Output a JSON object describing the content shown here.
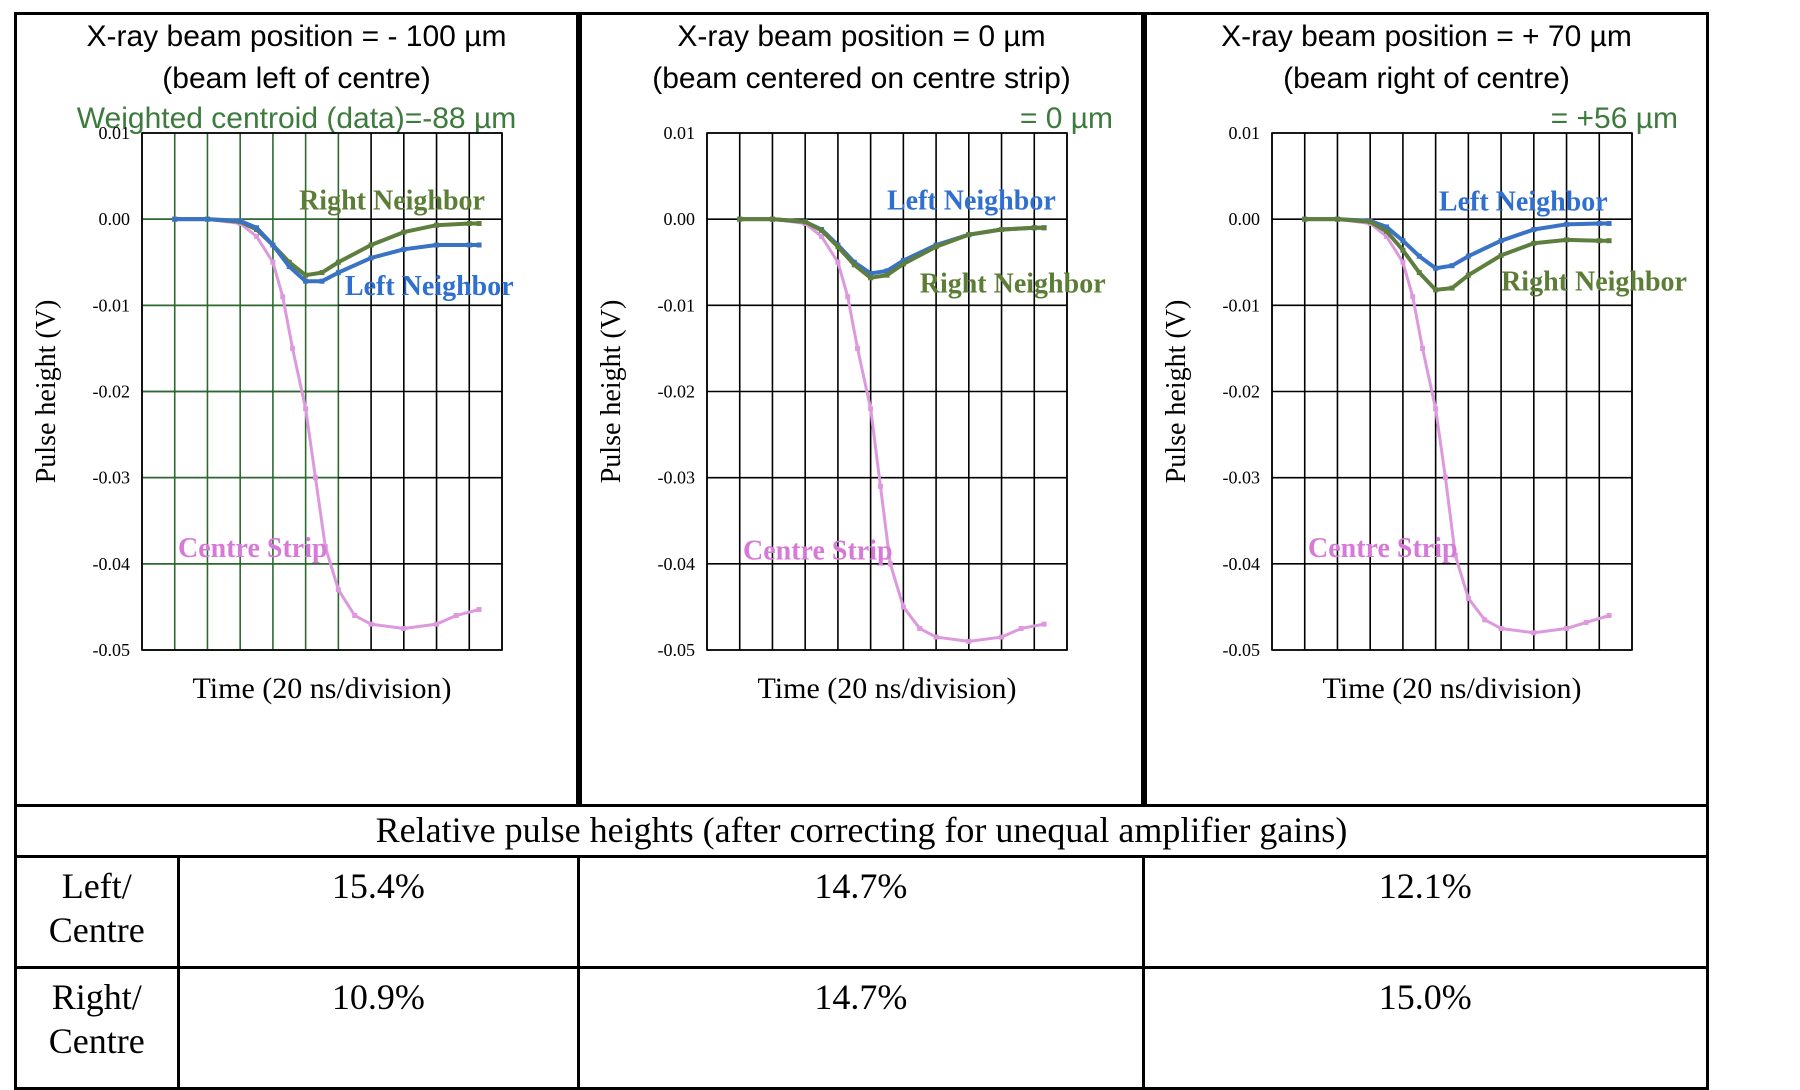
{
  "panels": [
    {
      "header_line1": "X-ray beam position = - 100 µm",
      "header_line2": "(beam left of centre)",
      "header_line3": "Weighted centroid (data)=-88 µm",
      "header_line3_align": "center"
    },
    {
      "header_line1": "X-ray beam position = 0 µm",
      "header_line2": "(beam centered on centre strip)",
      "header_line3": "= 0 µm",
      "header_line3_align": "right"
    },
    {
      "header_line1": "X-ray beam position =  + 70 µm",
      "header_line2": "(beam right of centre)",
      "header_line3": "=  +56 µm",
      "header_line3_align": "right"
    }
  ],
  "colors": {
    "centre": "#dd99dd",
    "left": "#3a72c4",
    "right": "#5e7e3e",
    "label_centre": "#d77ad7",
    "label_left": "#2f6fd0",
    "label_right": "#5b7d35",
    "centroid_text": "#3d7a3d",
    "grid_dark": "#000000",
    "grid_green": "#2d6a2d"
  },
  "chart_data": [
    {
      "type": "line",
      "xlabel": "Time (20 ns/division)",
      "ylabel": "Pulse height (V)",
      "ylim": [
        -0.05,
        0.01
      ],
      "yticks": [
        "0.01",
        "0.00",
        "-0.01",
        "-0.02",
        "-0.03",
        "-0.04",
        "-0.05"
      ],
      "ytick_values": [
        0.01,
        0.0,
        -0.01,
        -0.02,
        -0.03,
        -0.04,
        -0.05
      ],
      "xlim": [
        0,
        11
      ],
      "grid": true,
      "series": [
        {
          "name": "Centre Strip",
          "x": [
            1.0,
            2.0,
            3.0,
            3.5,
            4.0,
            4.3,
            4.6,
            5.0,
            5.3,
            5.6,
            6.0,
            6.5,
            7.0,
            8.0,
            9.0,
            9.6,
            10.3
          ],
          "values": [
            0.0,
            0.0,
            -0.0005,
            -0.002,
            -0.005,
            -0.009,
            -0.015,
            -0.022,
            -0.03,
            -0.038,
            -0.043,
            -0.046,
            -0.047,
            -0.0475,
            -0.047,
            -0.046,
            -0.0453
          ],
          "color_key": "centre"
        },
        {
          "name": "Right Neighbor",
          "x": [
            1.0,
            2.0,
            3.0,
            3.5,
            4.0,
            4.5,
            5.0,
            5.5,
            6.0,
            7.0,
            8.0,
            9.0,
            10.0,
            10.3
          ],
          "values": [
            0.0,
            0.0,
            -0.0003,
            -0.0012,
            -0.003,
            -0.005,
            -0.0065,
            -0.0062,
            -0.005,
            -0.003,
            -0.0015,
            -0.0007,
            -0.0005,
            -0.0005
          ],
          "color_key": "right"
        },
        {
          "name": "Left Neighbor",
          "x": [
            1.0,
            2.0,
            3.0,
            3.5,
            4.0,
            4.5,
            5.0,
            5.5,
            6.0,
            7.0,
            8.0,
            9.0,
            10.0,
            10.3
          ],
          "values": [
            0.0,
            0.0,
            -0.0002,
            -0.001,
            -0.003,
            -0.0055,
            -0.0072,
            -0.0072,
            -0.0062,
            -0.0045,
            -0.0035,
            -0.003,
            -0.003,
            -0.003
          ],
          "color_key": "left"
        }
      ],
      "annotations": [
        {
          "text": "Right Neighbor",
          "x": 4.8,
          "y": 0.0011,
          "color_key": "label_right"
        },
        {
          "text": "Left Neighbor",
          "x": 6.2,
          "y": -0.0088,
          "color_key": "label_left"
        },
        {
          "text": "Centre Strip",
          "x": 1.1,
          "y": -0.0392,
          "color_key": "label_centre"
        }
      ]
    },
    {
      "type": "line",
      "xlabel": "Time (20 ns/division)",
      "ylabel": "Pulse height (V)",
      "ylim": [
        -0.05,
        0.01
      ],
      "yticks": [
        "0.01",
        "0.00",
        "-0.01",
        "-0.02",
        "-0.03",
        "-0.04",
        "-0.05"
      ],
      "ytick_values": [
        0.01,
        0.0,
        -0.01,
        -0.02,
        -0.03,
        -0.04,
        -0.05
      ],
      "xlim": [
        0,
        11
      ],
      "grid": true,
      "series": [
        {
          "name": "Centre Strip",
          "x": [
            1.0,
            2.0,
            3.0,
            3.5,
            4.0,
            4.3,
            4.6,
            5.0,
            5.3,
            5.6,
            6.0,
            6.5,
            7.0,
            8.0,
            9.0,
            9.6,
            10.3
          ],
          "values": [
            0.0,
            0.0,
            -0.0005,
            -0.002,
            -0.005,
            -0.009,
            -0.015,
            -0.022,
            -0.031,
            -0.04,
            -0.045,
            -0.0475,
            -0.0485,
            -0.049,
            -0.0485,
            -0.0475,
            -0.047
          ],
          "color_key": "centre"
        },
        {
          "name": "Left Neighbor",
          "x": [
            1.0,
            2.0,
            3.0,
            3.5,
            4.0,
            4.5,
            5.0,
            5.5,
            6.0,
            7.0,
            8.0,
            9.0,
            10.0,
            10.3
          ],
          "values": [
            0.0,
            0.0,
            -0.0003,
            -0.0012,
            -0.003,
            -0.005,
            -0.0063,
            -0.006,
            -0.0048,
            -0.003,
            -0.0018,
            -0.0012,
            -0.001,
            -0.001
          ],
          "color_key": "left"
        },
        {
          "name": "Right Neighbor",
          "x": [
            1.0,
            2.0,
            3.0,
            3.5,
            4.0,
            4.5,
            5.0,
            5.5,
            6.0,
            7.0,
            8.0,
            9.0,
            10.0,
            10.3
          ],
          "values": [
            0.0,
            0.0,
            -0.0003,
            -0.0013,
            -0.0032,
            -0.0053,
            -0.0068,
            -0.0065,
            -0.0052,
            -0.0032,
            -0.0018,
            -0.0012,
            -0.001,
            -0.001
          ],
          "color_key": "right"
        }
      ],
      "annotations": [
        {
          "text": "Left Neighbor",
          "x": 5.5,
          "y": 0.0011,
          "color_key": "label_left"
        },
        {
          "text": "Right Neighbor",
          "x": 6.5,
          "y": -0.0085,
          "color_key": "label_right"
        },
        {
          "text": "Centre Strip",
          "x": 1.1,
          "y": -0.0395,
          "color_key": "label_centre"
        }
      ]
    },
    {
      "type": "line",
      "xlabel": "Time (20 ns/division)",
      "ylabel": "Pulse height (V)",
      "ylim": [
        -0.05,
        0.01
      ],
      "yticks": [
        "0.01",
        "0.00",
        "-0.01",
        "-0.02",
        "-0.03",
        "-0.04",
        "-0.05"
      ],
      "ytick_values": [
        0.01,
        0.0,
        -0.01,
        -0.02,
        -0.03,
        -0.04,
        -0.05
      ],
      "xlim": [
        0,
        11
      ],
      "grid": true,
      "series": [
        {
          "name": "Centre Strip",
          "x": [
            1.0,
            2.0,
            3.0,
            3.5,
            4.0,
            4.3,
            4.6,
            5.0,
            5.3,
            5.6,
            6.0,
            6.5,
            7.0,
            8.0,
            9.0,
            9.6,
            10.3
          ],
          "values": [
            0.0,
            0.0,
            -0.0005,
            -0.002,
            -0.005,
            -0.009,
            -0.015,
            -0.022,
            -0.03,
            -0.039,
            -0.044,
            -0.0465,
            -0.0475,
            -0.048,
            -0.0475,
            -0.0468,
            -0.046
          ],
          "color_key": "centre"
        },
        {
          "name": "Left Neighbor",
          "x": [
            1.0,
            2.0,
            3.0,
            3.5,
            4.0,
            4.5,
            5.0,
            5.5,
            6.0,
            7.0,
            8.0,
            9.0,
            10.0,
            10.3
          ],
          "values": [
            0.0,
            0.0,
            -0.0002,
            -0.0009,
            -0.0025,
            -0.0043,
            -0.0057,
            -0.0054,
            -0.0043,
            -0.0025,
            -0.0012,
            -0.0006,
            -0.0005,
            -0.0005
          ],
          "color_key": "left"
        },
        {
          "name": "Right Neighbor",
          "x": [
            1.0,
            2.0,
            3.0,
            3.5,
            4.0,
            4.5,
            5.0,
            5.5,
            6.0,
            7.0,
            8.0,
            9.0,
            10.0,
            10.3
          ],
          "values": [
            0.0,
            0.0,
            -0.0003,
            -0.0014,
            -0.0036,
            -0.0062,
            -0.0082,
            -0.008,
            -0.0065,
            -0.0042,
            -0.0028,
            -0.0024,
            -0.0025,
            -0.0025
          ],
          "color_key": "right"
        }
      ],
      "annotations": [
        {
          "text": "Left Neighbor",
          "x": 5.1,
          "y": 0.001,
          "color_key": "label_left"
        },
        {
          "text": "Right Neighbor",
          "x": 7.0,
          "y": -0.0083,
          "color_key": "label_right"
        },
        {
          "text": "Centre Strip",
          "x": 1.1,
          "y": -0.0392,
          "color_key": "label_centre"
        }
      ]
    }
  ],
  "table": {
    "title": "Relative pulse heights (after correcting for unequal amplifier gains)",
    "rows": [
      {
        "label_line1": "Left/",
        "label_line2": "Centre",
        "values": [
          "15.4%",
          "14.7%",
          "12.1%"
        ]
      },
      {
        "label_line1": "Right/",
        "label_line2": "Centre",
        "values": [
          "10.9%",
          "14.7%",
          "15.0%"
        ]
      }
    ]
  }
}
